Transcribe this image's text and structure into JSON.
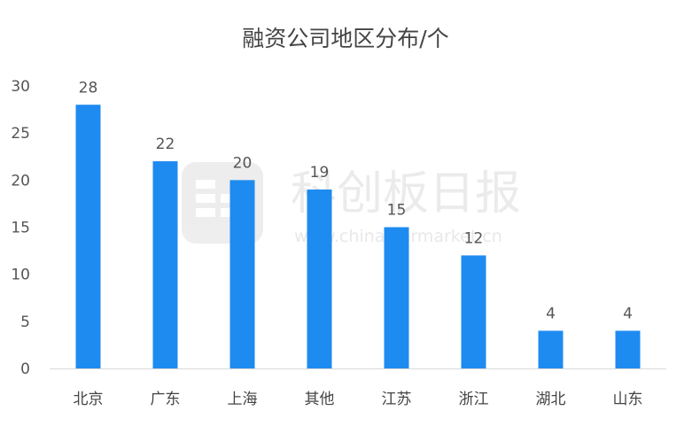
{
  "chart_data": {
    "type": "bar",
    "title": "融资公司地区分布/个",
    "categories": [
      "北京",
      "广东",
      "上海",
      "其他",
      "江苏",
      "浙江",
      "湖北",
      "山东"
    ],
    "values": [
      28,
      22,
      20,
      19,
      15,
      12,
      4,
      4
    ],
    "ylim": [
      0,
      30
    ],
    "yticks": [
      0,
      5,
      10,
      15,
      20,
      25,
      30
    ],
    "xlabel": "",
    "ylabel": "",
    "grid": false,
    "bar_color": "#1e8bf0",
    "data_labels": true
  },
  "watermark": {
    "text": "科创板日报",
    "url": "www.chinastarmarket.cn"
  }
}
